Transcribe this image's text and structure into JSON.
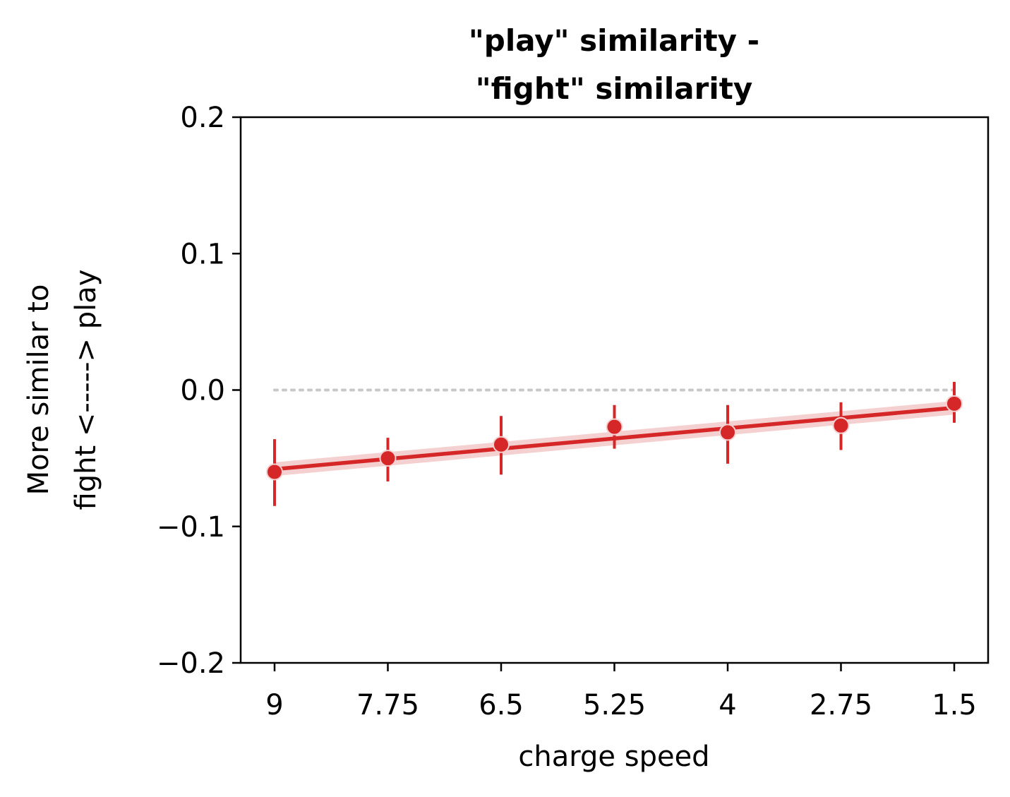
{
  "chart_data": {
    "type": "line",
    "title_lines": [
      "\"play\" similarity -",
      "\"fight\" similarity"
    ],
    "xlabel": "charge speed",
    "ylabel_lines": [
      "More similar to",
      "fight <-----> play"
    ],
    "categories": [
      "9",
      "7.75",
      "6.5",
      "5.25",
      "4",
      "2.75",
      "1.5"
    ],
    "ylim": [
      -0.2,
      0.2
    ],
    "yticks": [
      0.2,
      0.1,
      0.0,
      -0.1,
      -0.2
    ],
    "ytick_labels": [
      "0.2",
      "0.1",
      "0.0",
      "−0.1",
      "−0.2"
    ],
    "reference_line": 0.0,
    "grid": false,
    "legend": "none",
    "colors": {
      "series": "#d62728",
      "band": "#f2c4c4",
      "reference": "#c8c8c8"
    },
    "points": [
      {
        "x": "9",
        "y": -0.06,
        "err_low": -0.085,
        "err_high": -0.036
      },
      {
        "x": "7.75",
        "y": -0.05,
        "err_low": -0.067,
        "err_high": -0.035
      },
      {
        "x": "6.5",
        "y": -0.04,
        "err_low": -0.062,
        "err_high": -0.019
      },
      {
        "x": "5.25",
        "y": -0.027,
        "err_low": -0.043,
        "err_high": -0.011
      },
      {
        "x": "4",
        "y": -0.031,
        "err_low": -0.054,
        "err_high": -0.011
      },
      {
        "x": "2.75",
        "y": -0.026,
        "err_low": -0.044,
        "err_high": -0.009
      },
      {
        "x": "1.5",
        "y": -0.01,
        "err_low": -0.024,
        "err_high": 0.006
      }
    ],
    "fit_line": {
      "start": -0.058,
      "end": -0.013,
      "band_half_width": 0.005
    }
  }
}
